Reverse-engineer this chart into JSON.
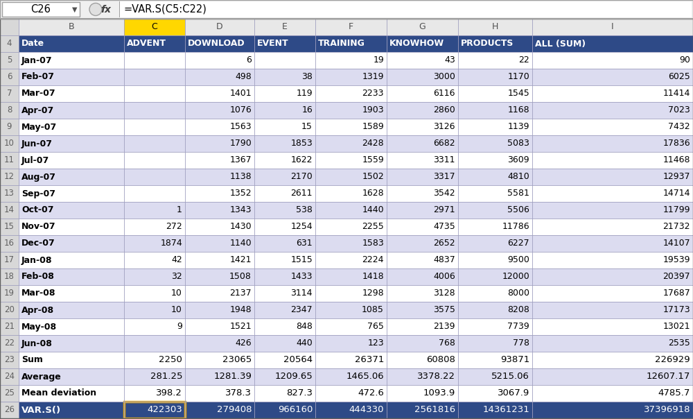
{
  "formula_bar_cell": "C26",
  "formula_bar_formula": "=VAR.S(C5:C22)",
  "col_labels": [
    "Date",
    "ADVENT",
    "DOWNLOAD",
    "EVENT",
    "TRAINING",
    "KNOWHOW",
    "PRODUCTS",
    "ALL (SUM)"
  ],
  "rows": [
    {
      "row": 5,
      "label": "Jan-07",
      "C": "",
      "D": "6",
      "E": "",
      "F": "19",
      "G": "43",
      "H": "22",
      "I": "90"
    },
    {
      "row": 6,
      "label": "Feb-07",
      "C": "",
      "D": "498",
      "E": "38",
      "F": "1319",
      "G": "3000",
      "H": "1170",
      "I": "6025"
    },
    {
      "row": 7,
      "label": "Mar-07",
      "C": "",
      "D": "1401",
      "E": "119",
      "F": "2233",
      "G": "6116",
      "H": "1545",
      "I": "11414"
    },
    {
      "row": 8,
      "label": "Apr-07",
      "C": "",
      "D": "1076",
      "E": "16",
      "F": "1903",
      "G": "2860",
      "H": "1168",
      "I": "7023"
    },
    {
      "row": 9,
      "label": "May-07",
      "C": "",
      "D": "1563",
      "E": "15",
      "F": "1589",
      "G": "3126",
      "H": "1139",
      "I": "7432"
    },
    {
      "row": 10,
      "label": "Jun-07",
      "C": "",
      "D": "1790",
      "E": "1853",
      "F": "2428",
      "G": "6682",
      "H": "5083",
      "I": "17836"
    },
    {
      "row": 11,
      "label": "Jul-07",
      "C": "",
      "D": "1367",
      "E": "1622",
      "F": "1559",
      "G": "3311",
      "H": "3609",
      "I": "11468"
    },
    {
      "row": 12,
      "label": "Aug-07",
      "C": "",
      "D": "1138",
      "E": "2170",
      "F": "1502",
      "G": "3317",
      "H": "4810",
      "I": "12937"
    },
    {
      "row": 13,
      "label": "Sep-07",
      "C": "",
      "D": "1352",
      "E": "2611",
      "F": "1628",
      "G": "3542",
      "H": "5581",
      "I": "14714"
    },
    {
      "row": 14,
      "label": "Oct-07",
      "C": "1",
      "D": "1343",
      "E": "538",
      "F": "1440",
      "G": "2971",
      "H": "5506",
      "I": "11799"
    },
    {
      "row": 15,
      "label": "Nov-07",
      "C": "272",
      "D": "1430",
      "E": "1254",
      "F": "2255",
      "G": "4735",
      "H": "11786",
      "I": "21732"
    },
    {
      "row": 16,
      "label": "Dec-07",
      "C": "1874",
      "D": "1140",
      "E": "631",
      "F": "1583",
      "G": "2652",
      "H": "6227",
      "I": "14107"
    },
    {
      "row": 17,
      "label": "Jan-08",
      "C": "42",
      "D": "1421",
      "E": "1515",
      "F": "2224",
      "G": "4837",
      "H": "9500",
      "I": "19539"
    },
    {
      "row": 18,
      "label": "Feb-08",
      "C": "32",
      "D": "1508",
      "E": "1433",
      "F": "1418",
      "G": "4006",
      "H": "12000",
      "I": "20397"
    },
    {
      "row": 19,
      "label": "Mar-08",
      "C": "10",
      "D": "2137",
      "E": "3114",
      "F": "1298",
      "G": "3128",
      "H": "8000",
      "I": "17687"
    },
    {
      "row": 20,
      "label": "Apr-08",
      "C": "10",
      "D": "1948",
      "E": "2347",
      "F": "1085",
      "G": "3575",
      "H": "8208",
      "I": "17173"
    },
    {
      "row": 21,
      "label": "May-08",
      "C": "9",
      "D": "1521",
      "E": "848",
      "F": "765",
      "G": "2139",
      "H": "7739",
      "I": "13021"
    },
    {
      "row": 22,
      "label": "Jun-08",
      "C": "",
      "D": "426",
      "E": "440",
      "F": "123",
      "G": "768",
      "H": "778",
      "I": "2535"
    }
  ],
  "summary_rows": [
    {
      "row": 23,
      "label": "Sum",
      "C": "2250",
      "D": "23065",
      "E": "20564",
      "F": "26371",
      "G": "60808",
      "H": "93871",
      "I": "226929"
    },
    {
      "row": 24,
      "label": "Average",
      "C": "281.25",
      "D": "1281.39",
      "E": "1209.65",
      "F": "1465.06",
      "G": "3378.22",
      "H": "5215.06",
      "I": "12607.17"
    },
    {
      "row": 25,
      "label": "Mean deviation",
      "C": "398.2",
      "D": "378.3",
      "E": "827.3",
      "F": "472.6",
      "G": "1093.9",
      "H": "3067.9",
      "I": "4785.7"
    },
    {
      "row": 26,
      "label": "VAR.S()",
      "C": "422303",
      "D": "279408",
      "E": "966160",
      "F": "444330",
      "G": "2561816",
      "H": "14361231",
      "I": "37396918"
    }
  ],
  "header_bg": "#2E4A87",
  "header_fg": "#FFFFFF",
  "row_bg_odd": "#FFFFFF",
  "row_bg_even": "#DCDCF0",
  "grid_line_color": "#A0A0C0",
  "col_C_header_bg": "#FFD700",
  "col_C_header_fg": "#000000",
  "row_num_bg": "#D8D8D8",
  "row_num_fg": "#606060",
  "col_letter_bg": "#E8E8E8",
  "formula_bar_bg": "#F0F0F0",
  "outer_border": "#808080",
  "var_border_color": "#DAA520"
}
